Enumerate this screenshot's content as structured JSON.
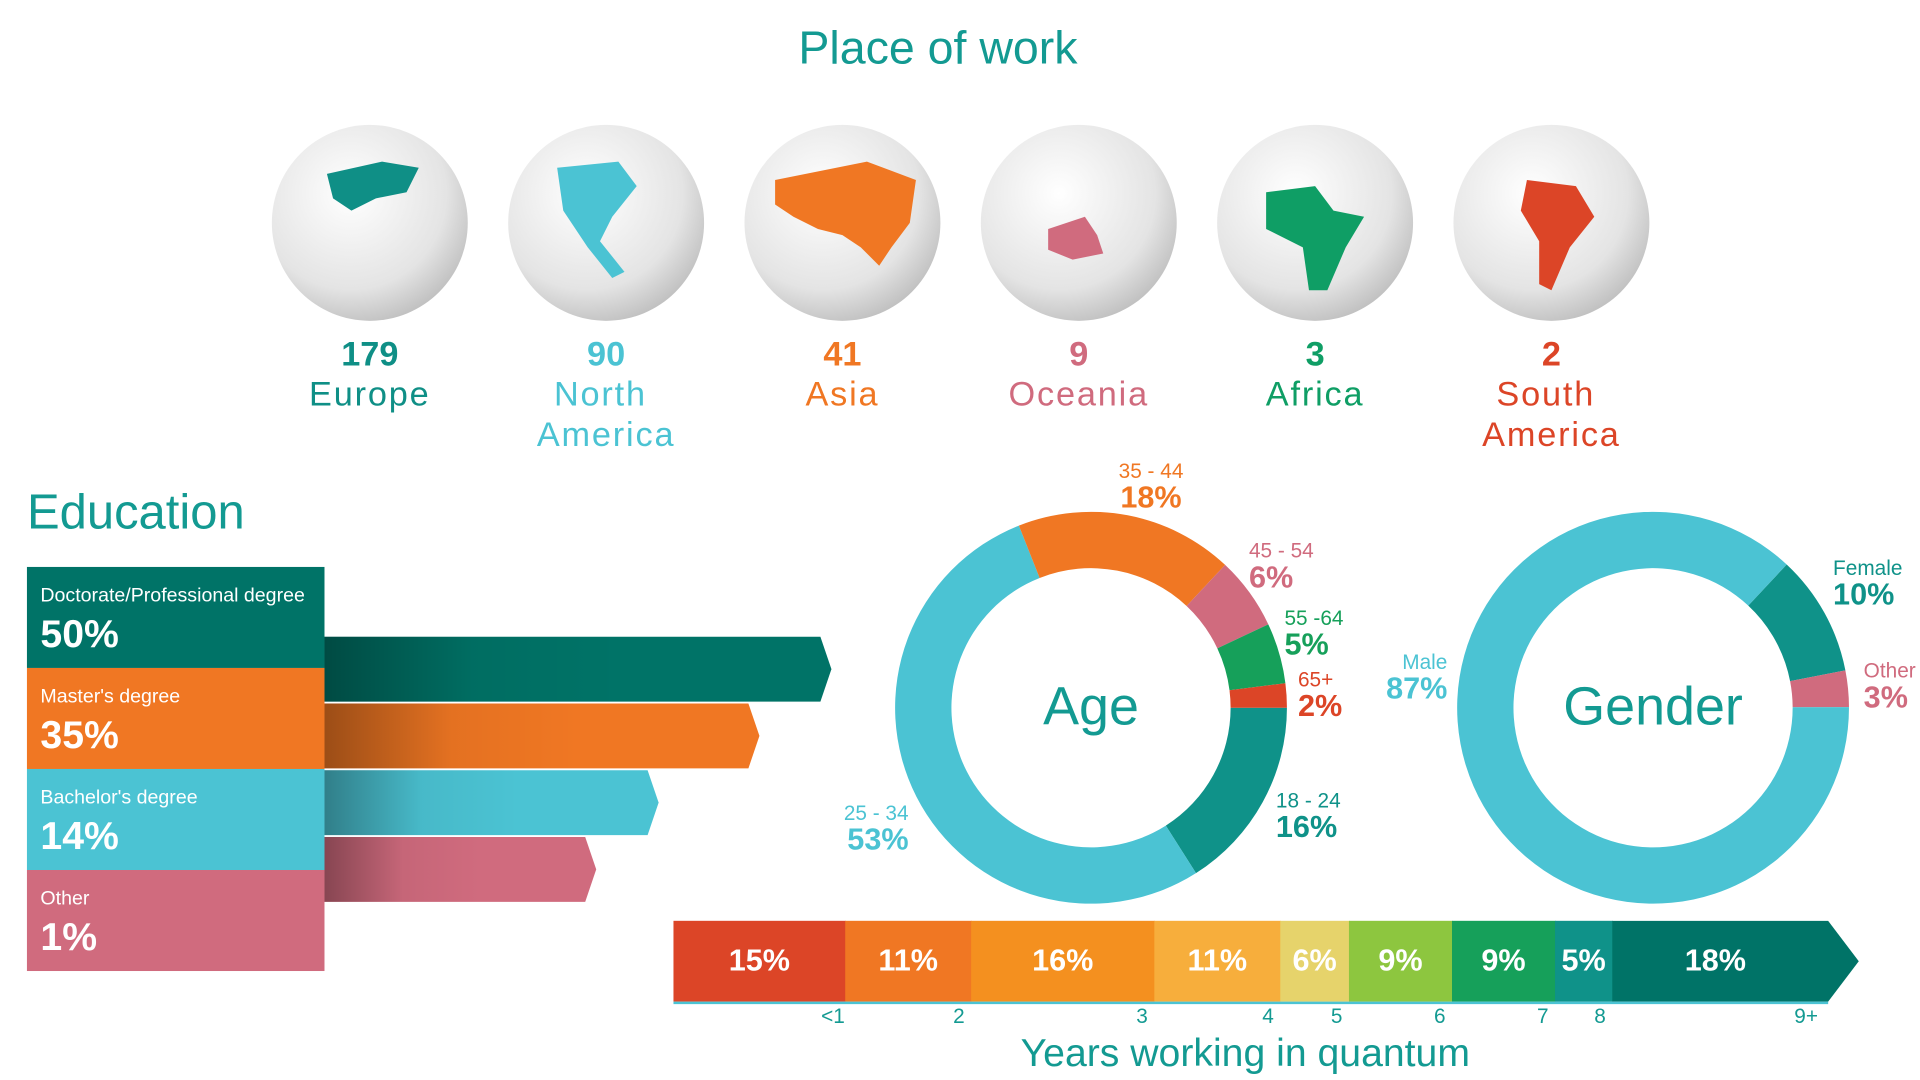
{
  "chart_data": [
    {
      "type": "globes",
      "title": "Place of work",
      "categories": [
        "Europe",
        "North America",
        "Asia",
        "Oceania",
        "Africa",
        "South America"
      ],
      "values": [
        179,
        90,
        41,
        9,
        3,
        2
      ],
      "colors": [
        "#0f8f86",
        "#4bc3d3",
        "#f07723",
        "#d06b7e",
        "#0f9e65",
        "#dc4527"
      ]
    },
    {
      "type": "education",
      "title": "Education",
      "categories": [
        "Doctorate/Professional degree",
        "Master's degree",
        "Bachelor's degree",
        "Other"
      ],
      "values": [
        50,
        35,
        14,
        1
      ],
      "value_labels": [
        "50%",
        "35%",
        "14%",
        "1%"
      ],
      "colors": [
        "#007367",
        "#f07723",
        "#4bc3d3",
        "#d06b7e"
      ]
    },
    {
      "type": "donut",
      "title": "Age",
      "categories": [
        "18 - 24",
        "25 - 34",
        "35 - 44",
        "45 - 54",
        "55 -64",
        "65+"
      ],
      "values": [
        16,
        53,
        18,
        6,
        5,
        2
      ],
      "value_labels": [
        "16%",
        "53%",
        "18%",
        "6%",
        "5%",
        "2%"
      ],
      "colors": [
        "#0f9289",
        "#4bc3d3",
        "#f07723",
        "#d06b7e",
        "#16a05a",
        "#dc4527"
      ]
    },
    {
      "type": "donut",
      "title": "Gender",
      "categories": [
        "Female",
        "Other",
        "Male"
      ],
      "values": [
        10,
        3,
        87
      ],
      "value_labels": [
        "10%",
        "3%",
        "87%"
      ],
      "colors": [
        "#0f9289",
        "#d06b7e",
        "#4bc3d3"
      ]
    },
    {
      "type": "stacked-bar",
      "xlabel": "Years working in quantum",
      "categories": [
        "<1",
        "2",
        "3",
        "4",
        "5",
        "6",
        "7",
        "8",
        "9+"
      ],
      "values": [
        15,
        11,
        16,
        11,
        6,
        9,
        9,
        5,
        18
      ],
      "value_labels": [
        "15%",
        "11%",
        "16%",
        "11%",
        "6%",
        "9%",
        "9%",
        "5%",
        "18%"
      ],
      "colors": [
        "#dc4527",
        "#f07723",
        "#f4901f",
        "#f7ae3c",
        "#e6d36b",
        "#8dc63f",
        "#16a05a",
        "#0f9289",
        "#007367"
      ]
    }
  ]
}
